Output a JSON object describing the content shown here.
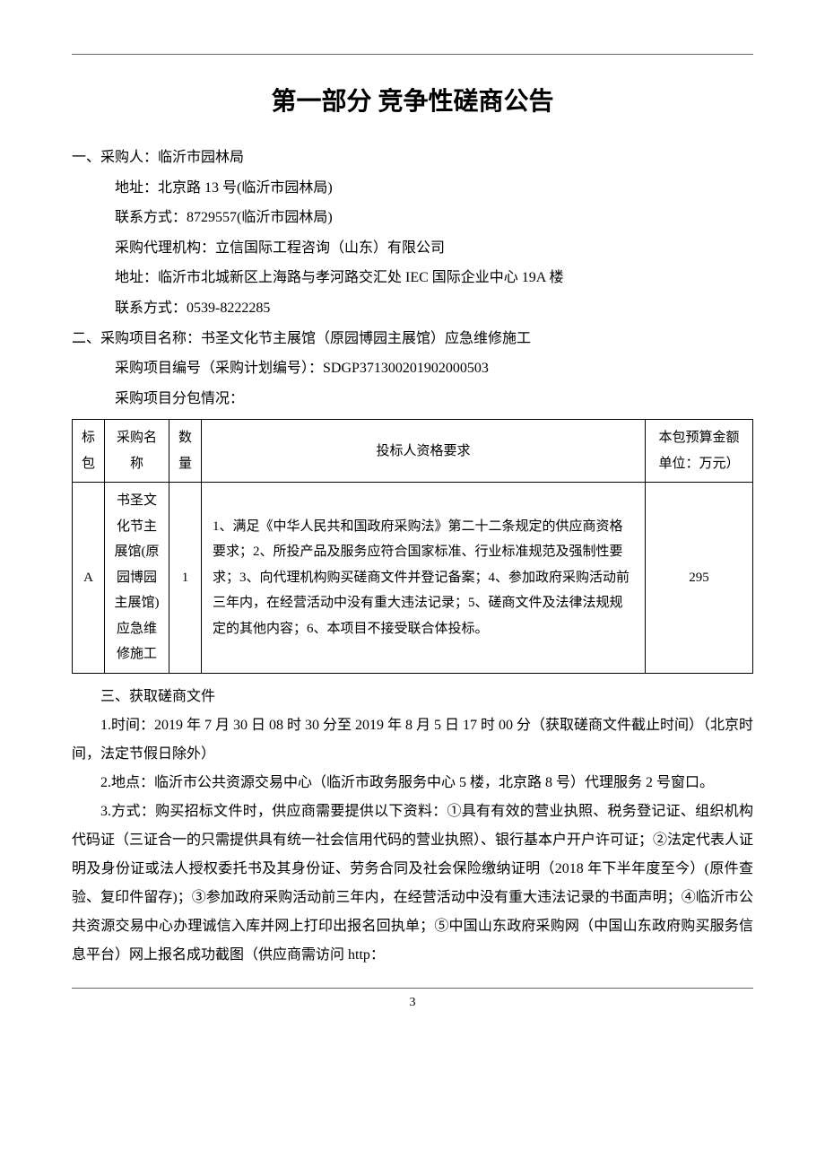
{
  "page": {
    "title": "第一部分 竞争性磋商公告",
    "number": "3"
  },
  "section1": {
    "heading": "一、采购人：临沂市园林局",
    "lines": [
      "地址：北京路 13 号(临沂市园林局)",
      "联系方式：8729557(临沂市园林局)",
      "采购代理机构：立信国际工程咨询（山东）有限公司",
      "地址：临沂市北城新区上海路与孝河路交汇处 IEC 国际企业中心 19A 楼",
      "联系方式：0539-8222285"
    ]
  },
  "section2": {
    "heading": "二、采购项目名称：书圣文化节主展馆（原园博园主展馆）应急维修施工",
    "lines": [
      "采购项目编号（采购计划编号）：SDGP371300201902000503",
      "采购项目分包情况："
    ]
  },
  "table": {
    "headers": {
      "pkg": "标包",
      "name": "采购名称",
      "qty": "数量",
      "req": "投标人资格要求",
      "budget_l1": "本包预算金额",
      "budget_l2": "单位：万元）"
    },
    "row": {
      "pkg": "A",
      "name": "书圣文化节主展馆(原园博园主展馆)应急维修施工",
      "qty": "1",
      "req": "1、满足《中华人民共和国政府采购法》第二十二条规定的供应商资格要求；2、所投产品及服务应符合国家标准、行业标准规范及强制性要求；3、向代理机构购买磋商文件并登记备案；4、参加政府采购活动前三年内，在经营活动中没有重大违法记录；5、磋商文件及法律法规规定的其他内容；6、本项目不接受联合体投标。",
      "budget": "295"
    }
  },
  "section3": {
    "heading": "三、获取磋商文件",
    "paras": [
      "1.时间：2019 年 7 月 30 日 08 时 30 分至 2019 年 8 月 5 日 17 时 00 分（获取磋商文件截止时间）（北京时间，法定节假日除外）",
      "2.地点：临沂市公共资源交易中心（临沂市政务服务中心 5 楼，北京路 8 号）代理服务 2 号窗口。",
      "3.方式：购买招标文件时，供应商需要提供以下资料：①具有有效的营业执照、税务登记证、组织机构代码证（三证合一的只需提供具有统一社会信用代码的营业执照）、银行基本户开户许可证；②法定代表人证明及身份证或法人授权委托书及其身份证、劳务合同及社会保险缴纳证明（2018 年下半年度至今）(原件查验、复印件留存)；③参加政府采购活动前三年内，在经营活动中没有重大违法记录的书面声明；④临沂市公共资源交易中心办理诚信入库并网上打印出报名回执单；⑤中国山东政府采购网（中国山东政府购买服务信息平台）网上报名成功截图（供应商需访问 http："
    ]
  },
  "style": {
    "body_fontsize": 16,
    "title_fontsize": 28,
    "line_height": 2.0,
    "text_color": "#000000",
    "background_color": "#ffffff",
    "border_color": "#000000",
    "hr_color": "#666666"
  }
}
